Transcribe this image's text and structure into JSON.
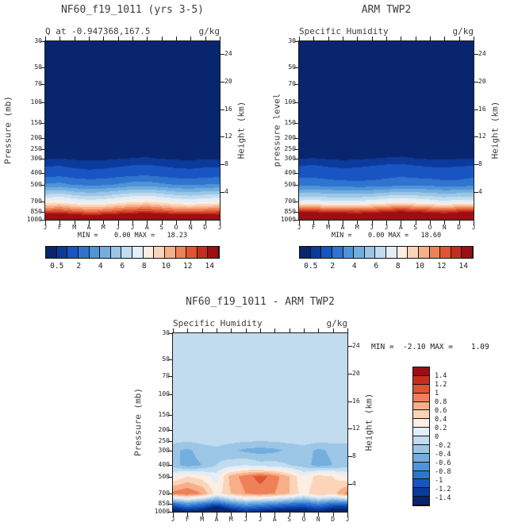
{
  "palette": [
    "#08256d",
    "#0c3a9a",
    "#1855c2",
    "#2f74cf",
    "#4f94d9",
    "#73aede",
    "#9bc6e6",
    "#c1dbef",
    "#e3eef8",
    "#fdeee3",
    "#fbd4ba",
    "#f7af88",
    "#ef8158",
    "#e05433",
    "#c52e1e",
    "#9c0e13"
  ],
  "chart_data": [
    {
      "type": "heatmap",
      "title": "NF60_f19_1011 (yrs 3-5)",
      "subtitle": "Q at -0.947368,167.5",
      "units": "g/kg",
      "ylabel_left": "Pressure (mb)",
      "ylabel_right": "Height (km)",
      "stats_text": "MIN =    0.00 MAX =   18.23",
      "x": [
        "J",
        "F",
        "M",
        "A",
        "M",
        "J",
        "J",
        "A",
        "S",
        "O",
        "N",
        "D",
        "J"
      ],
      "y_pressure_mb": [
        30,
        50,
        70,
        100,
        150,
        200,
        250,
        300,
        400,
        500,
        700,
        850,
        1000
      ],
      "height_ticks_km": [
        24,
        20,
        16,
        12,
        8,
        4
      ],
      "levels": [
        0.5,
        1,
        2,
        3,
        4,
        5,
        6,
        7,
        8,
        9,
        10,
        11,
        12,
        13,
        14
      ],
      "level_labels": [
        "0.5",
        "2",
        "4",
        "6",
        "8",
        "10",
        "12",
        "14"
      ],
      "values": [
        [
          0,
          0,
          0,
          0,
          0,
          0,
          0,
          0,
          0,
          0,
          0,
          0,
          0
        ],
        [
          0,
          0,
          0,
          0,
          0,
          0,
          0,
          0,
          0,
          0,
          0,
          0,
          0
        ],
        [
          0.01,
          0.01,
          0.01,
          0.01,
          0.01,
          0.01,
          0.01,
          0.01,
          0.01,
          0.01,
          0.01,
          0.01,
          0.01
        ],
        [
          0.02,
          0.02,
          0.02,
          0.02,
          0.02,
          0.02,
          0.02,
          0.02,
          0.02,
          0.02,
          0.02,
          0.02,
          0.02
        ],
        [
          0.04,
          0.04,
          0.04,
          0.04,
          0.04,
          0.04,
          0.04,
          0.04,
          0.04,
          0.04,
          0.04,
          0.04,
          0.04
        ],
        [
          0.08,
          0.08,
          0.08,
          0.08,
          0.08,
          0.08,
          0.08,
          0.08,
          0.08,
          0.08,
          0.08,
          0.08,
          0.08
        ],
        [
          0.18,
          0.2,
          0.17,
          0.15,
          0.16,
          0.18,
          0.2,
          0.22,
          0.19,
          0.17,
          0.16,
          0.18,
          0.18
        ],
        [
          0.45,
          0.5,
          0.42,
          0.38,
          0.4,
          0.46,
          0.52,
          0.55,
          0.48,
          0.42,
          0.4,
          0.44,
          0.45
        ],
        [
          1.4,
          1.5,
          1.3,
          1.2,
          1.25,
          1.4,
          1.55,
          1.6,
          1.45,
          1.3,
          1.25,
          1.35,
          1.4
        ],
        [
          3.1,
          3.3,
          2.9,
          2.7,
          2.8,
          3.1,
          3.4,
          3.5,
          3.2,
          2.9,
          2.8,
          3.0,
          3.1
        ],
        [
          8.2,
          8.5,
          7.9,
          7.5,
          7.7,
          8.2,
          8.7,
          8.9,
          8.4,
          7.9,
          7.7,
          8.0,
          8.2
        ],
        [
          12.6,
          12.9,
          12.3,
          11.9,
          12.1,
          12.6,
          13.0,
          13.2,
          12.8,
          12.3,
          12.1,
          12.4,
          12.6
        ],
        [
          17.6,
          17.9,
          17.3,
          17.0,
          17.2,
          17.6,
          18.0,
          18.23,
          17.8,
          17.4,
          17.2,
          17.5,
          17.6
        ]
      ]
    },
    {
      "type": "heatmap",
      "title": "ARM TWP2",
      "subtitle": "Specific Humidity",
      "units": "g/kg",
      "ylabel_left": "pressure level",
      "ylabel_right": "Height (km)",
      "stats_text": "MIN =    0.00 MAX =   18.60",
      "x": [
        "J",
        "F",
        "M",
        "A",
        "M",
        "J",
        "J",
        "A",
        "S",
        "O",
        "N",
        "D",
        "J"
      ],
      "y_pressure_mb": [
        30,
        50,
        70,
        100,
        150,
        200,
        250,
        300,
        400,
        500,
        700,
        850,
        1000
      ],
      "height_ticks_km": [
        24,
        20,
        16,
        12,
        8,
        4
      ],
      "levels": [
        0.5,
        1,
        2,
        3,
        4,
        5,
        6,
        7,
        8,
        9,
        10,
        11,
        12,
        13,
        14
      ],
      "level_labels": [
        "0.5",
        "2",
        "4",
        "6",
        "8",
        "10",
        "12",
        "14"
      ],
      "values": [
        [
          0,
          0,
          0,
          0,
          0,
          0,
          0,
          0,
          0,
          0,
          0,
          0,
          0
        ],
        [
          0,
          0,
          0,
          0,
          0,
          0,
          0,
          0,
          0,
          0,
          0,
          0,
          0
        ],
        [
          0.01,
          0.01,
          0.01,
          0.01,
          0.01,
          0.01,
          0.01,
          0.01,
          0.01,
          0.01,
          0.01,
          0.01,
          0.01
        ],
        [
          0.02,
          0.02,
          0.02,
          0.02,
          0.02,
          0.02,
          0.02,
          0.02,
          0.02,
          0.02,
          0.02,
          0.02,
          0.02
        ],
        [
          0.04,
          0.04,
          0.04,
          0.04,
          0.04,
          0.04,
          0.04,
          0.04,
          0.04,
          0.04,
          0.04,
          0.04,
          0.04
        ],
        [
          0.08,
          0.08,
          0.08,
          0.08,
          0.08,
          0.08,
          0.08,
          0.08,
          0.08,
          0.08,
          0.08,
          0.08,
          0.08
        ],
        [
          0.17,
          0.19,
          0.16,
          0.14,
          0.15,
          0.17,
          0.19,
          0.21,
          0.18,
          0.16,
          0.15,
          0.17,
          0.17
        ],
        [
          0.48,
          0.52,
          0.45,
          0.4,
          0.43,
          0.49,
          0.54,
          0.57,
          0.5,
          0.45,
          0.42,
          0.47,
          0.48
        ],
        [
          1.5,
          1.6,
          1.4,
          1.3,
          1.35,
          1.5,
          1.65,
          1.7,
          1.55,
          1.4,
          1.35,
          1.45,
          1.5
        ],
        [
          2.7,
          2.6,
          2.5,
          2.4,
          2.3,
          2.3,
          2.4,
          2.6,
          2.6,
          2.6,
          2.4,
          2.4,
          2.7
        ],
        [
          7.3,
          7.5,
          7.2,
          7.2,
          7.2,
          7.5,
          7.9,
          8.2,
          7.9,
          7.6,
          7.2,
          7.6,
          7.3
        ],
        [
          13.8,
          13.7,
          13.3,
          13.2,
          13.0,
          13.3,
          13.8,
          14.1,
          13.8,
          13.4,
          13.0,
          13.6,
          13.8
        ],
        [
          18.3,
          18.4,
          18.0,
          17.8,
          17.9,
          18.1,
          18.5,
          18.6,
          18.3,
          18.0,
          17.8,
          18.2,
          18.3
        ]
      ]
    },
    {
      "type": "heatmap",
      "title": "NF60_f19_1011 - ARM TWP2",
      "subtitle": "Specific Humidity",
      "units": "g/kg",
      "ylabel_left": "Pressure (mb)",
      "ylabel_right": "Height (km)",
      "stats_text": "MIN =  -2.10 MAX =    1.09",
      "x": [
        "J",
        "F",
        "M",
        "A",
        "M",
        "J",
        "J",
        "A",
        "S",
        "O",
        "N",
        "D",
        "J"
      ],
      "y_pressure_mb": [
        30,
        50,
        70,
        100,
        150,
        200,
        250,
        300,
        400,
        500,
        700,
        850,
        1000
      ],
      "height_ticks_km": [
        24,
        20,
        16,
        12,
        8,
        4
      ],
      "levels": [
        -1.4,
        -1.2,
        -1.0,
        -0.8,
        -0.6,
        -0.4,
        -0.2,
        0,
        0.2,
        0.4,
        0.6,
        0.8,
        1.0,
        1.2,
        1.4
      ],
      "level_labels": [
        "1.4",
        "1.2",
        "1",
        "0.8",
        "0.6",
        "0.4",
        "0.2",
        "0",
        "-0.2",
        "-0.4",
        "-0.6",
        "-0.8",
        "-1",
        "-1.2",
        "-1.4"
      ],
      "values": [
        [
          -0.05,
          -0.05,
          -0.05,
          -0.05,
          -0.05,
          -0.05,
          -0.05,
          -0.05,
          -0.05,
          -0.05,
          -0.05,
          -0.05,
          -0.05
        ],
        [
          -0.05,
          -0.05,
          -0.05,
          -0.05,
          -0.05,
          -0.05,
          -0.05,
          -0.05,
          -0.05,
          -0.05,
          -0.05,
          -0.05,
          -0.05
        ],
        [
          -0.05,
          -0.05,
          -0.05,
          -0.05,
          -0.05,
          -0.05,
          -0.05,
          -0.05,
          -0.05,
          -0.05,
          -0.05,
          -0.05,
          -0.05
        ],
        [
          -0.08,
          -0.08,
          -0.08,
          -0.08,
          -0.08,
          -0.08,
          -0.08,
          -0.08,
          -0.08,
          -0.08,
          -0.08,
          -0.08,
          -0.08
        ],
        [
          -0.1,
          -0.1,
          -0.1,
          -0.1,
          -0.1,
          -0.1,
          -0.1,
          -0.1,
          -0.1,
          -0.1,
          -0.1,
          -0.1,
          -0.1
        ],
        [
          -0.12,
          -0.12,
          -0.12,
          -0.12,
          -0.12,
          -0.12,
          -0.12,
          -0.12,
          -0.12,
          -0.12,
          -0.12,
          -0.12,
          -0.12
        ],
        [
          -0.15,
          -0.18,
          -0.15,
          -0.12,
          -0.15,
          -0.18,
          -0.2,
          -0.18,
          -0.15,
          -0.12,
          -0.15,
          -0.15,
          -0.15
        ],
        [
          -0.35,
          -0.45,
          -0.3,
          -0.25,
          -0.35,
          -0.45,
          -0.5,
          -0.45,
          -0.35,
          -0.3,
          -0.45,
          -0.35,
          -0.35
        ],
        [
          -0.3,
          -0.5,
          -0.4,
          -0.2,
          -0.1,
          0,
          -0.1,
          -0.1,
          -0.2,
          -0.3,
          -0.5,
          -0.4,
          -0.3
        ],
        [
          0.2,
          0.4,
          0.3,
          0.1,
          0.7,
          0.9,
          1.09,
          0.9,
          0.6,
          0.2,
          0.5,
          0.4,
          0.2
        ],
        [
          0.9,
          1.0,
          0.8,
          0.3,
          0.6,
          0.8,
          0.9,
          0.8,
          0.6,
          0.3,
          0.6,
          0.5,
          0.9
        ],
        [
          -0.9,
          -0.6,
          -0.8,
          -1.0,
          -0.7,
          -0.5,
          -0.6,
          -0.7,
          -0.8,
          -0.9,
          -0.7,
          -0.9,
          -0.9
        ],
        [
          -1.7,
          -1.5,
          -1.6,
          -2.1,
          -1.6,
          -1.4,
          -1.5,
          -1.6,
          -1.7,
          -1.6,
          -1.5,
          -1.7,
          -1.7
        ]
      ]
    }
  ]
}
